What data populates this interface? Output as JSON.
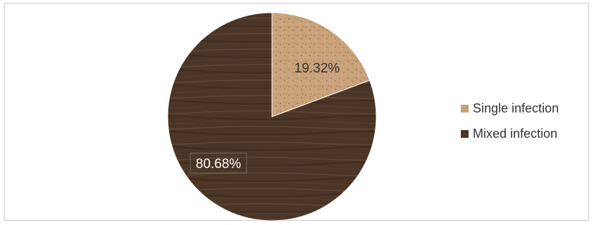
{
  "chart_data": {
    "type": "pie",
    "title": "",
    "slices": [
      {
        "label": "Single infection",
        "value": 19.32,
        "display": "19.32%",
        "color": "#c9a27a",
        "label_color": "#333333"
      },
      {
        "label": "Mixed infection",
        "value": 80.68,
        "display": "80.68%",
        "color": "#4a3526",
        "label_color": "#ffffff"
      }
    ],
    "legend": {
      "position": "right"
    },
    "start_angle_deg": 0,
    "direction": "clockwise"
  },
  "colors": {
    "frame_border": "#c9c9c9",
    "label_box_border": "#bfbfbf",
    "wood_grain": "#6b5240",
    "cork_speck": "#8a6a48"
  }
}
